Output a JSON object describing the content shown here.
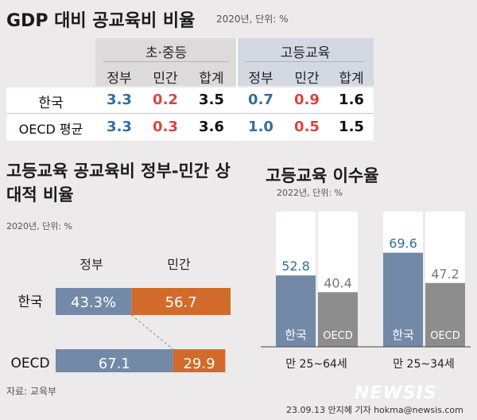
{
  "table": {
    "title": "GDP 대비 공교육비 비율",
    "note": "2020년, 단위: %",
    "groups": [
      "초·중등",
      "고등교육"
    ],
    "columns": [
      "정부",
      "민간",
      "합계",
      "정부",
      "민간",
      "합계"
    ],
    "rows": [
      {
        "label": "한국",
        "values": [
          "3.3",
          "0.2",
          "3.5",
          "0.7",
          "0.9",
          "1.6"
        ]
      },
      {
        "label": "OECD 평균",
        "values": [
          "3.3",
          "0.3",
          "3.6",
          "1.0",
          "0.5",
          "1.5"
        ]
      }
    ]
  },
  "chart_data": [
    {
      "type": "bar",
      "title": "고등교육 공교육비 정부-민간 상대적 비율",
      "subtitle": "2020년, 단위: %",
      "orientation": "horizontal-stacked",
      "categories": [
        "한국",
        "OECD"
      ],
      "series": [
        {
          "name": "정부",
          "values": [
            43.3,
            67.1
          ],
          "labels": [
            "43.3%",
            "67.1"
          ],
          "color": "#7389a8"
        },
        {
          "name": "민간",
          "values": [
            56.7,
            29.9
          ],
          "labels": [
            "56.7",
            "29.9"
          ],
          "color": "#d16b2c"
        }
      ]
    },
    {
      "type": "bar",
      "title": "고등교육 이수율",
      "subtitle": "2022년, 단위: %",
      "groups": [
        "만 25~64세",
        "만 25~34세"
      ],
      "categories": [
        "한국",
        "OECD"
      ],
      "ylim": [
        0,
        100
      ],
      "series": [
        {
          "values": [
            52.8,
            40.4
          ],
          "labels": [
            "52.8",
            "40.4"
          ]
        },
        {
          "values": [
            69.6,
            47.2
          ],
          "labels": [
            "69.6",
            "47.2"
          ]
        }
      ],
      "colors": {
        "한국": "#7389a8",
        "OECD": "#8d8d8d"
      }
    }
  ],
  "footer": {
    "source": "자료: 교육부",
    "credit": "23.09.13 안지혜 기자 hokma@newsis.com",
    "watermark": "NEWSIS"
  }
}
